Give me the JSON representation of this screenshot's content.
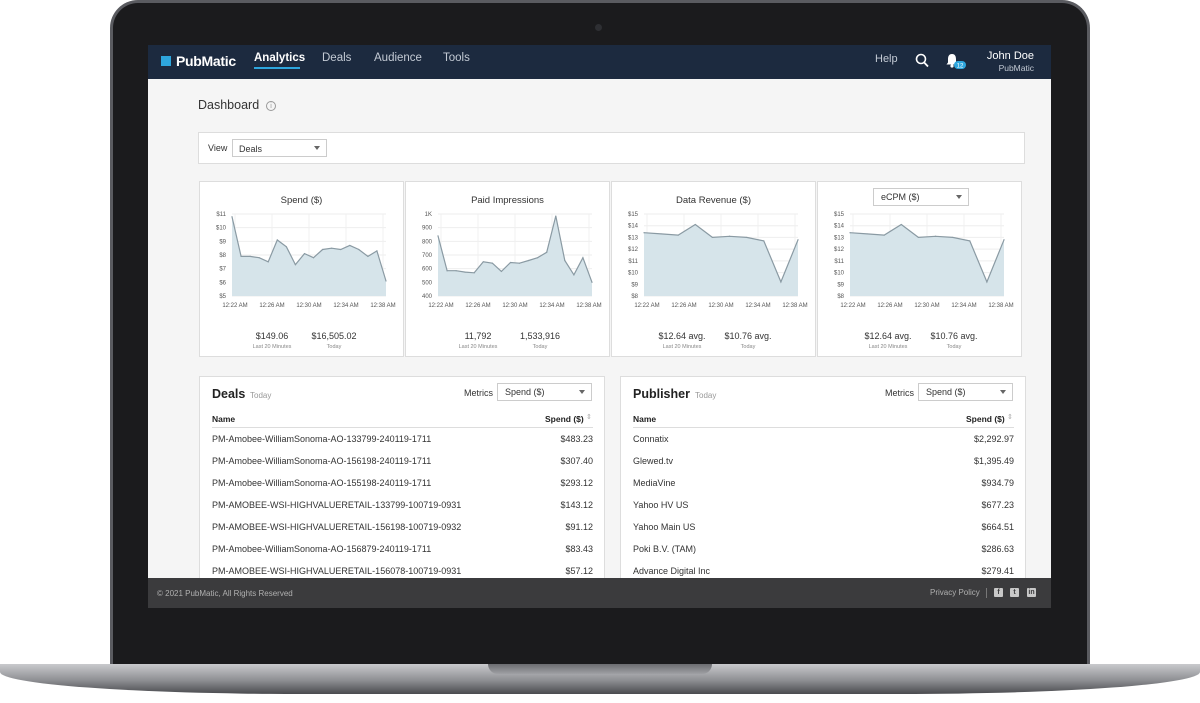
{
  "nav": {
    "logo": "PubMatic",
    "items": [
      "Analytics",
      "Deals",
      "Audience",
      "Tools"
    ],
    "help": "Help",
    "notification_count": "12",
    "user_name": "John Doe",
    "user_org": "PubMatic"
  },
  "page": {
    "title": "Dashboard",
    "info": "i"
  },
  "view": {
    "label": "View",
    "selected": "Deals"
  },
  "cards": [
    {
      "title": "Spend ($)",
      "yticks": [
        "$11",
        "$10",
        "$9",
        "$8",
        "$7",
        "$6",
        "$5"
      ],
      "xticks": [
        "12:22 AM",
        "12:26 AM",
        "12:30 AM",
        "12:34 AM",
        "12:38 AM"
      ],
      "metric1": "$149.06",
      "metric1_sub": "Last 20 Minutes",
      "metric2": "$16,505.02",
      "metric2_sub": "Today"
    },
    {
      "title": "Paid Impressions",
      "yticks": [
        "1K",
        "900",
        "800",
        "700",
        "600",
        "500",
        "400"
      ],
      "xticks": [
        "12:22 AM",
        "12:26 AM",
        "12:30 AM",
        "12:34 AM",
        "12:38 AM"
      ],
      "metric1": "11,792",
      "metric1_sub": "Last 20 Minutes",
      "metric2": "1,533,916",
      "metric2_sub": "Today"
    },
    {
      "title": "Data Revenue ($)",
      "yticks": [
        "$15",
        "$14",
        "$13",
        "$12",
        "$11",
        "$10",
        "$9",
        "$8"
      ],
      "xticks": [
        "12:22 AM",
        "12:26 AM",
        "12:30 AM",
        "12:34 AM",
        "12:38 AM"
      ],
      "metric1": "$12.64 avg.",
      "metric1_sub": "Last 20 Minutes",
      "metric2": "$10.76 avg.",
      "metric2_sub": "Today"
    },
    {
      "title": "eCPM ($)",
      "yticks": [
        "$15",
        "$14",
        "$13",
        "$12",
        "$11",
        "$10",
        "$9",
        "$8"
      ],
      "xticks": [
        "12:22 AM",
        "12:26 AM",
        "12:30 AM",
        "12:34 AM",
        "12:38 AM"
      ],
      "metric1": "$12.64 avg.",
      "metric1_sub": "Last 20 Minutes",
      "metric2": "$10.76 avg.",
      "metric2_sub": "Today"
    }
  ],
  "chart_data": [
    {
      "type": "area",
      "title": "Spend ($)",
      "ylim": [
        5,
        11
      ],
      "x": [
        "12:22 AM",
        "12:23 AM",
        "12:24 AM",
        "12:25 AM",
        "12:26 AM",
        "12:27 AM",
        "12:28 AM",
        "12:29 AM",
        "12:30 AM",
        "12:31 AM",
        "12:32 AM",
        "12:33 AM",
        "12:34 AM",
        "12:35 AM",
        "12:36 AM",
        "12:37 AM",
        "12:38 AM",
        "12:39 AM"
      ],
      "values": [
        10.8,
        7.9,
        7.9,
        7.8,
        7.5,
        9.1,
        8.6,
        7.3,
        8.1,
        7.8,
        8.4,
        8.5,
        8.4,
        8.7,
        8.4,
        7.9,
        8.3,
        6.1
      ]
    },
    {
      "type": "area",
      "title": "Paid Impressions",
      "ylim": [
        400,
        1000
      ],
      "x": [
        "12:22 AM",
        "12:23 AM",
        "12:24 AM",
        "12:25 AM",
        "12:26 AM",
        "12:27 AM",
        "12:28 AM",
        "12:29 AM",
        "12:30 AM",
        "12:31 AM",
        "12:32 AM",
        "12:33 AM",
        "12:34 AM",
        "12:35 AM",
        "12:36 AM",
        "12:37 AM",
        "12:38 AM",
        "12:39 AM"
      ],
      "values": [
        840,
        585,
        585,
        575,
        570,
        650,
        640,
        580,
        645,
        640,
        660,
        680,
        720,
        985,
        660,
        555,
        680,
        500
      ]
    },
    {
      "type": "area",
      "title": "Data Revenue ($)",
      "ylim": [
        8,
        15
      ],
      "x": [
        "12:22 AM",
        "12:24 AM",
        "12:26 AM",
        "12:28 AM",
        "12:30 AM",
        "12:32 AM",
        "12:34 AM",
        "12:36 AM",
        "12:38 AM",
        "12:39 AM"
      ],
      "values": [
        13.4,
        13.3,
        13.2,
        14.1,
        13.0,
        13.1,
        13.0,
        12.7,
        9.2,
        12.8
      ]
    },
    {
      "type": "area",
      "title": "eCPM ($)",
      "ylim": [
        8,
        15
      ],
      "x": [
        "12:22 AM",
        "12:24 AM",
        "12:26 AM",
        "12:28 AM",
        "12:30 AM",
        "12:32 AM",
        "12:34 AM",
        "12:36 AM",
        "12:38 AM",
        "12:39 AM"
      ],
      "values": [
        13.4,
        13.3,
        13.2,
        14.1,
        13.0,
        13.1,
        13.0,
        12.7,
        9.2,
        12.8
      ]
    }
  ],
  "deals": {
    "title": "Deals",
    "subtitle": "Today",
    "metrics_label": "Metrics",
    "metrics_selected": "Spend ($)",
    "col_name": "Name",
    "col_value": "Spend ($)",
    "rows": [
      {
        "name": "PM-Amobee-WilliamSonoma-AO-133799-240119-1711",
        "value": "$483.23"
      },
      {
        "name": "PM-Amobee-WilliamSonoma-AO-156198-240119-1711",
        "value": "$307.40"
      },
      {
        "name": "PM-Amobee-WilliamSonoma-AO-155198-240119-1711",
        "value": "$293.12"
      },
      {
        "name": "PM-AMOBEE-WSI-HIGHVALUERETAIL-133799-100719-0931",
        "value": "$143.12"
      },
      {
        "name": "PM-AMOBEE-WSI-HIGHVALUERETAIL-156198-100719-0932",
        "value": "$91.12"
      },
      {
        "name": "PM-Amobee-WilliamSonoma-AO-156879-240119-1711",
        "value": "$83.43"
      },
      {
        "name": "PM-AMOBEE-WSI-HIGHVALUERETAIL-156078-100719-0931",
        "value": "$57.12"
      }
    ]
  },
  "publisher": {
    "title": "Publisher",
    "subtitle": "Today",
    "metrics_label": "Metrics",
    "metrics_selected": "Spend ($)",
    "col_name": "Name",
    "col_value": "Spend ($)",
    "rows": [
      {
        "name": "Connatix",
        "value": "$2,292.97"
      },
      {
        "name": "Glewed.tv",
        "value": "$1,395.49"
      },
      {
        "name": "MediaVine",
        "value": "$934.79"
      },
      {
        "name": "Yahoo HV US",
        "value": "$677.23"
      },
      {
        "name": "Yahoo Main US",
        "value": "$664.51"
      },
      {
        "name": "Poki B.V. (TAM)",
        "value": "$286.63"
      },
      {
        "name": "Advance Digital Inc",
        "value": "$279.41"
      }
    ]
  },
  "footer": {
    "copyright": "© 2021 PubMatic, All Rights Reserved",
    "privacy": "Privacy Policy",
    "social": [
      "facebook-icon",
      "twitter-icon",
      "linkedin-icon"
    ]
  },
  "colors": {
    "nav_bg": "#1c2a3f",
    "accent": "#2ea6dd",
    "area_fill": "#d6e4ea",
    "area_line": "#8a9aa3",
    "footer_bg": "#3b3b3d"
  }
}
